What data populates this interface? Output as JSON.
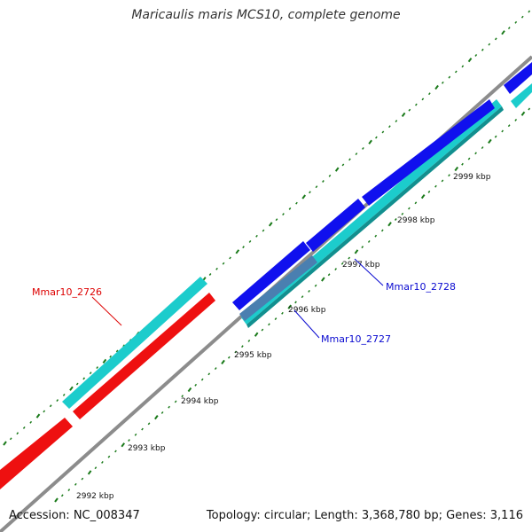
{
  "title": "Maricaulis maris MCS10, complete genome",
  "footer": {
    "accession": "Accession: NC_008347",
    "summary": "Topology: circular; Length: 3,368,780 bp; Genes: 3,116"
  },
  "colors": {
    "backbone": "#8c8c8c",
    "ticks": "#1a7a1a",
    "forward_gene": "#1010ee",
    "reverse_gene": "#ee1010",
    "cds_forward": "#1ccccc",
    "highlight": "#4a7fb0",
    "label_blue": "#0a0ad0",
    "label_red": "#dd0000"
  },
  "scale": {
    "labels": [
      {
        "text": "2992 kbp"
      },
      {
        "text": "2993 kbp"
      },
      {
        "text": "2994 kbp"
      },
      {
        "text": "2995 kbp"
      },
      {
        "text": "2996 kbp"
      },
      {
        "text": "2997 kbp"
      },
      {
        "text": "2998 kbp"
      },
      {
        "text": "2999 kbp"
      }
    ]
  },
  "genes": {
    "labels": [
      {
        "text": "Mmar10_2726",
        "color": "#dd0000"
      },
      {
        "text": "Mmar10_2727",
        "color": "#0a0ad0"
      },
      {
        "text": "Mmar10_2728",
        "color": "#0a0ad0"
      }
    ]
  }
}
